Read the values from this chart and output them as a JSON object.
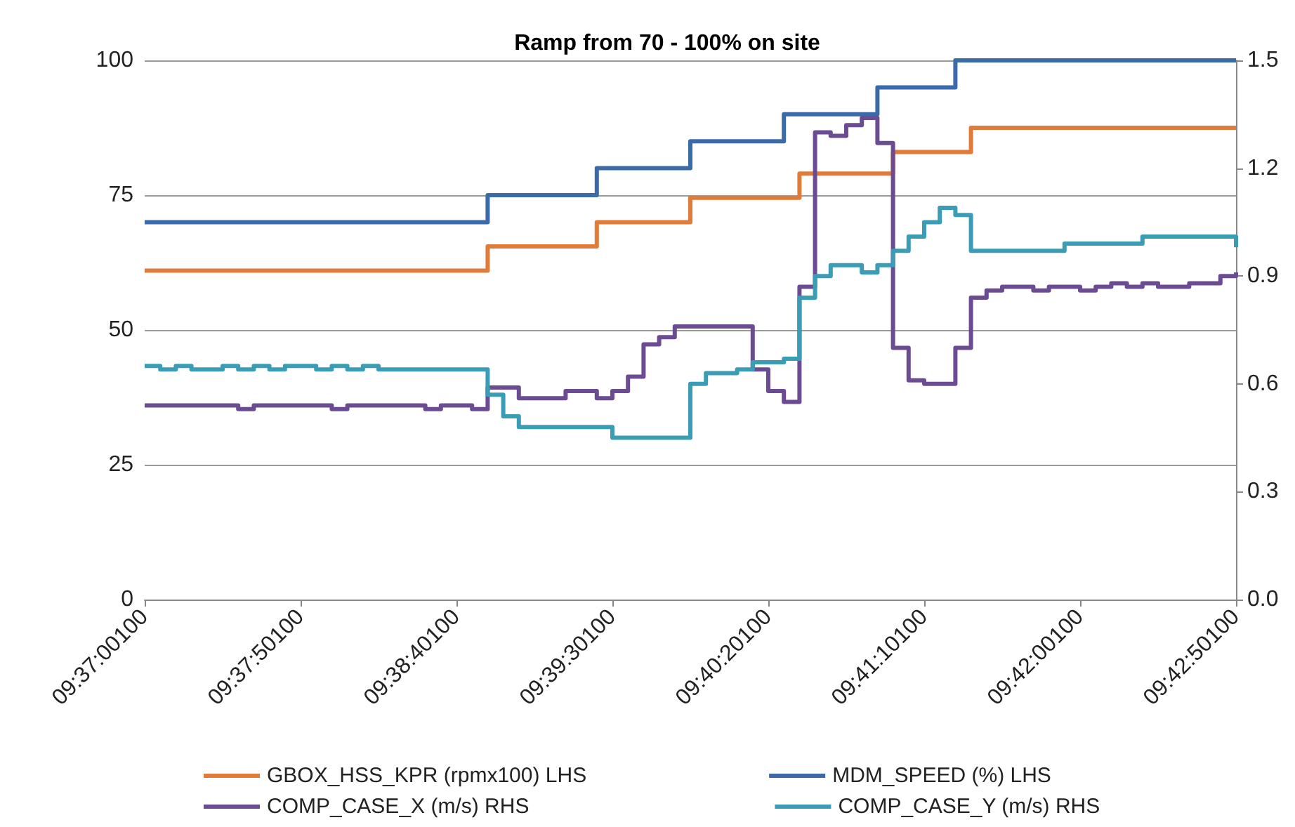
{
  "chart_data": {
    "type": "step",
    "title": "Ramp from 70 - 100% on site",
    "categories": [
      "09:37:00100",
      null,
      null,
      null,
      null,
      null,
      null,
      null,
      null,
      null,
      "09:37:50100",
      null,
      null,
      null,
      null,
      null,
      null,
      null,
      null,
      null,
      "09:38:40100",
      null,
      null,
      null,
      null,
      null,
      null,
      null,
      null,
      null,
      "09:39:30100",
      null,
      null,
      null,
      null,
      null,
      null,
      null,
      null,
      null,
      "09:40:20100",
      null,
      null,
      null,
      null,
      null,
      null,
      null,
      null,
      null,
      "09:41:10100",
      null,
      null,
      null,
      null,
      null,
      null,
      null,
      null,
      null,
      "09:42:00100",
      null,
      null,
      null,
      null,
      null,
      null,
      null,
      null,
      null,
      "09:42:50100"
    ],
    "series": [
      {
        "name": "GBOX_HSS_KPR (rpmx100) LHS",
        "color": "#e07b39",
        "values": [
          61,
          61,
          61,
          61,
          61,
          61,
          61,
          61,
          61,
          61,
          61,
          61,
          61,
          61,
          61,
          61,
          61,
          61,
          61,
          61,
          61,
          61,
          65.5,
          65.5,
          65.5,
          65.5,
          65.5,
          65.5,
          65.5,
          70,
          70,
          70,
          70,
          70,
          70,
          74.5,
          74.5,
          74.5,
          74.5,
          74.5,
          74.5,
          74.5,
          79,
          79,
          79,
          79,
          79,
          79,
          83,
          83,
          83,
          83,
          83,
          87.5,
          87.5,
          87.5,
          87.5,
          87.5,
          87.5,
          87.5,
          87.5,
          87.5,
          87.5,
          87.5,
          87.5,
          87.5,
          87.5,
          87.5,
          87.5,
          87.5,
          87.5
        ]
      },
      {
        "name": "MDM_SPEED (%) LHS",
        "color": "#3b6aa8",
        "values": [
          70,
          70,
          70,
          70,
          70,
          70,
          70,
          70,
          70,
          70,
          70,
          70,
          70,
          70,
          70,
          70,
          70,
          70,
          70,
          70,
          70,
          70,
          75,
          75,
          75,
          75,
          75,
          75,
          75,
          80,
          80,
          80,
          80,
          80,
          80,
          85,
          85,
          85,
          85,
          85,
          85,
          90,
          90,
          90,
          90,
          90,
          90,
          95,
          95,
          95,
          95,
          95,
          100,
          100,
          100,
          100,
          100,
          100,
          100,
          100,
          100,
          100,
          100,
          100,
          100,
          100,
          100,
          100,
          100,
          100,
          100
        ]
      },
      {
        "name": "COMP_CASE_X (m/s) RHS",
        "color": "#6b4c93",
        "axis": "y2",
        "values": [
          0.54,
          0.54,
          0.54,
          0.54,
          0.54,
          0.54,
          0.53,
          0.54,
          0.54,
          0.54,
          0.54,
          0.54,
          0.53,
          0.54,
          0.54,
          0.54,
          0.54,
          0.54,
          0.53,
          0.54,
          0.54,
          0.53,
          0.59,
          0.59,
          0.56,
          0.56,
          0.56,
          0.58,
          0.58,
          0.56,
          0.58,
          0.62,
          0.71,
          0.73,
          0.76,
          0.76,
          0.76,
          0.76,
          0.76,
          0.64,
          0.58,
          0.55,
          0.87,
          1.3,
          1.29,
          1.32,
          1.34,
          1.27,
          0.7,
          0.61,
          0.6,
          0.6,
          0.7,
          0.84,
          0.86,
          0.87,
          0.87,
          0.86,
          0.87,
          0.87,
          0.86,
          0.87,
          0.88,
          0.87,
          0.88,
          0.87,
          0.87,
          0.88,
          0.88,
          0.9,
          0.91
        ]
      },
      {
        "name": "COMP_CASE_Y (m/s) RHS",
        "color": "#3a9db5",
        "axis": "y2",
        "values": [
          0.65,
          0.64,
          0.65,
          0.64,
          0.64,
          0.65,
          0.64,
          0.65,
          0.64,
          0.65,
          0.65,
          0.64,
          0.65,
          0.64,
          0.65,
          0.64,
          0.64,
          0.64,
          0.64,
          0.64,
          0.64,
          0.64,
          0.57,
          0.51,
          0.48,
          0.48,
          0.48,
          0.48,
          0.48,
          0.48,
          0.45,
          0.45,
          0.45,
          0.45,
          0.45,
          0.6,
          0.63,
          0.63,
          0.64,
          0.66,
          0.66,
          0.67,
          0.84,
          0.9,
          0.93,
          0.93,
          0.91,
          0.93,
          0.97,
          1.01,
          1.05,
          1.09,
          1.07,
          0.97,
          0.97,
          0.97,
          0.97,
          0.97,
          0.97,
          0.99,
          0.99,
          0.99,
          0.99,
          0.99,
          1.01,
          1.01,
          1.01,
          1.01,
          1.01,
          1.01,
          0.98
        ]
      }
    ],
    "ylim": [
      0,
      100
    ],
    "yticks": [
      0,
      25,
      50,
      75,
      100
    ],
    "y2lim": [
      0,
      1.5
    ],
    "y2ticks": [
      {
        "value": 0,
        "label": "0.0"
      },
      {
        "value": 0.3,
        "label": "0.3"
      },
      {
        "value": 0.6,
        "label": "0.6"
      },
      {
        "value": 0.9,
        "label": "0.9"
      },
      {
        "value": 1.2,
        "label": "1.2"
      },
      {
        "value": 1.5,
        "label": "1.5"
      }
    ],
    "grid": "y",
    "legend": "bottom",
    "marker": "none"
  }
}
